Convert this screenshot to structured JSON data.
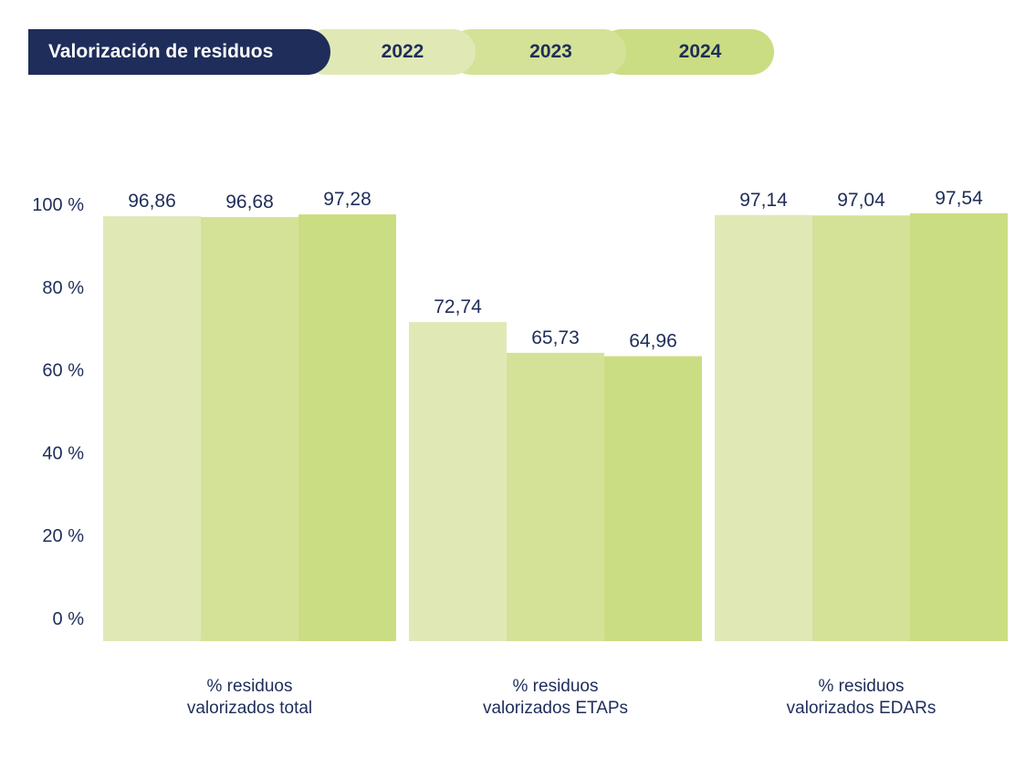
{
  "legend": {
    "title": "Valorización de residuos",
    "years": [
      "2022",
      "2023",
      "2024"
    ]
  },
  "colors": {
    "navy": "#1f2d5a",
    "y2022": "#e0e9b6",
    "y2023": "#d4e298",
    "y2024": "#cbdd82"
  },
  "chart_data": {
    "type": "bar",
    "categories": [
      [
        "% residuos",
        "valorizados total"
      ],
      [
        "% residuos",
        "valorizados ETAPs"
      ],
      [
        "% residuos",
        "valorizados EDARs"
      ]
    ],
    "series": [
      {
        "name": "2022",
        "values": [
          96.86,
          72.74,
          97.14
        ],
        "labels": [
          "96,86",
          "72,74",
          "97,14"
        ]
      },
      {
        "name": "2023",
        "values": [
          96.68,
          65.73,
          97.04
        ],
        "labels": [
          "96,68",
          "65,73",
          "97,04"
        ]
      },
      {
        "name": "2024",
        "values": [
          97.28,
          64.96,
          97.54
        ],
        "labels": [
          "97,28",
          "64,96",
          "97,54"
        ]
      }
    ],
    "yticks": [
      "0 %",
      "20 %",
      "40 %",
      "60 %",
      "80 %",
      "100 %"
    ],
    "ylim": [
      0,
      100
    ],
    "grid": false,
    "legend_position": "top-left"
  }
}
